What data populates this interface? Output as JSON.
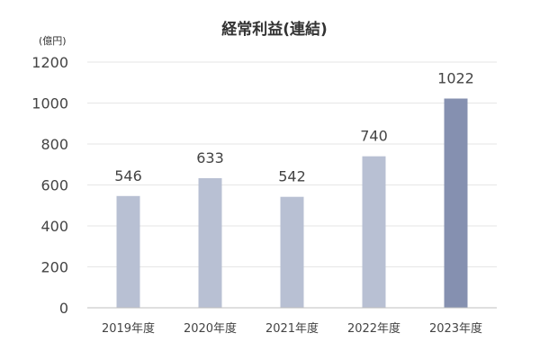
{
  "chart_data": {
    "type": "bar",
    "title": "経常利益(連結)",
    "unit_label": "(億円)",
    "categories": [
      "2019年度",
      "2020年度",
      "2021年度",
      "2022年度",
      "2023年度"
    ],
    "values": [
      546,
      633,
      542,
      740,
      1022
    ],
    "data_labels": [
      "546",
      "633",
      "542",
      "740",
      "1022"
    ],
    "ylim": [
      0,
      1200
    ],
    "yticks": [
      0,
      200,
      400,
      600,
      800,
      1000,
      1200
    ],
    "grid": true,
    "legend": "none",
    "colors": {
      "bar": "#b8c0d3",
      "highlight_bar": "#8590b0",
      "highlight_index": 4
    }
  }
}
